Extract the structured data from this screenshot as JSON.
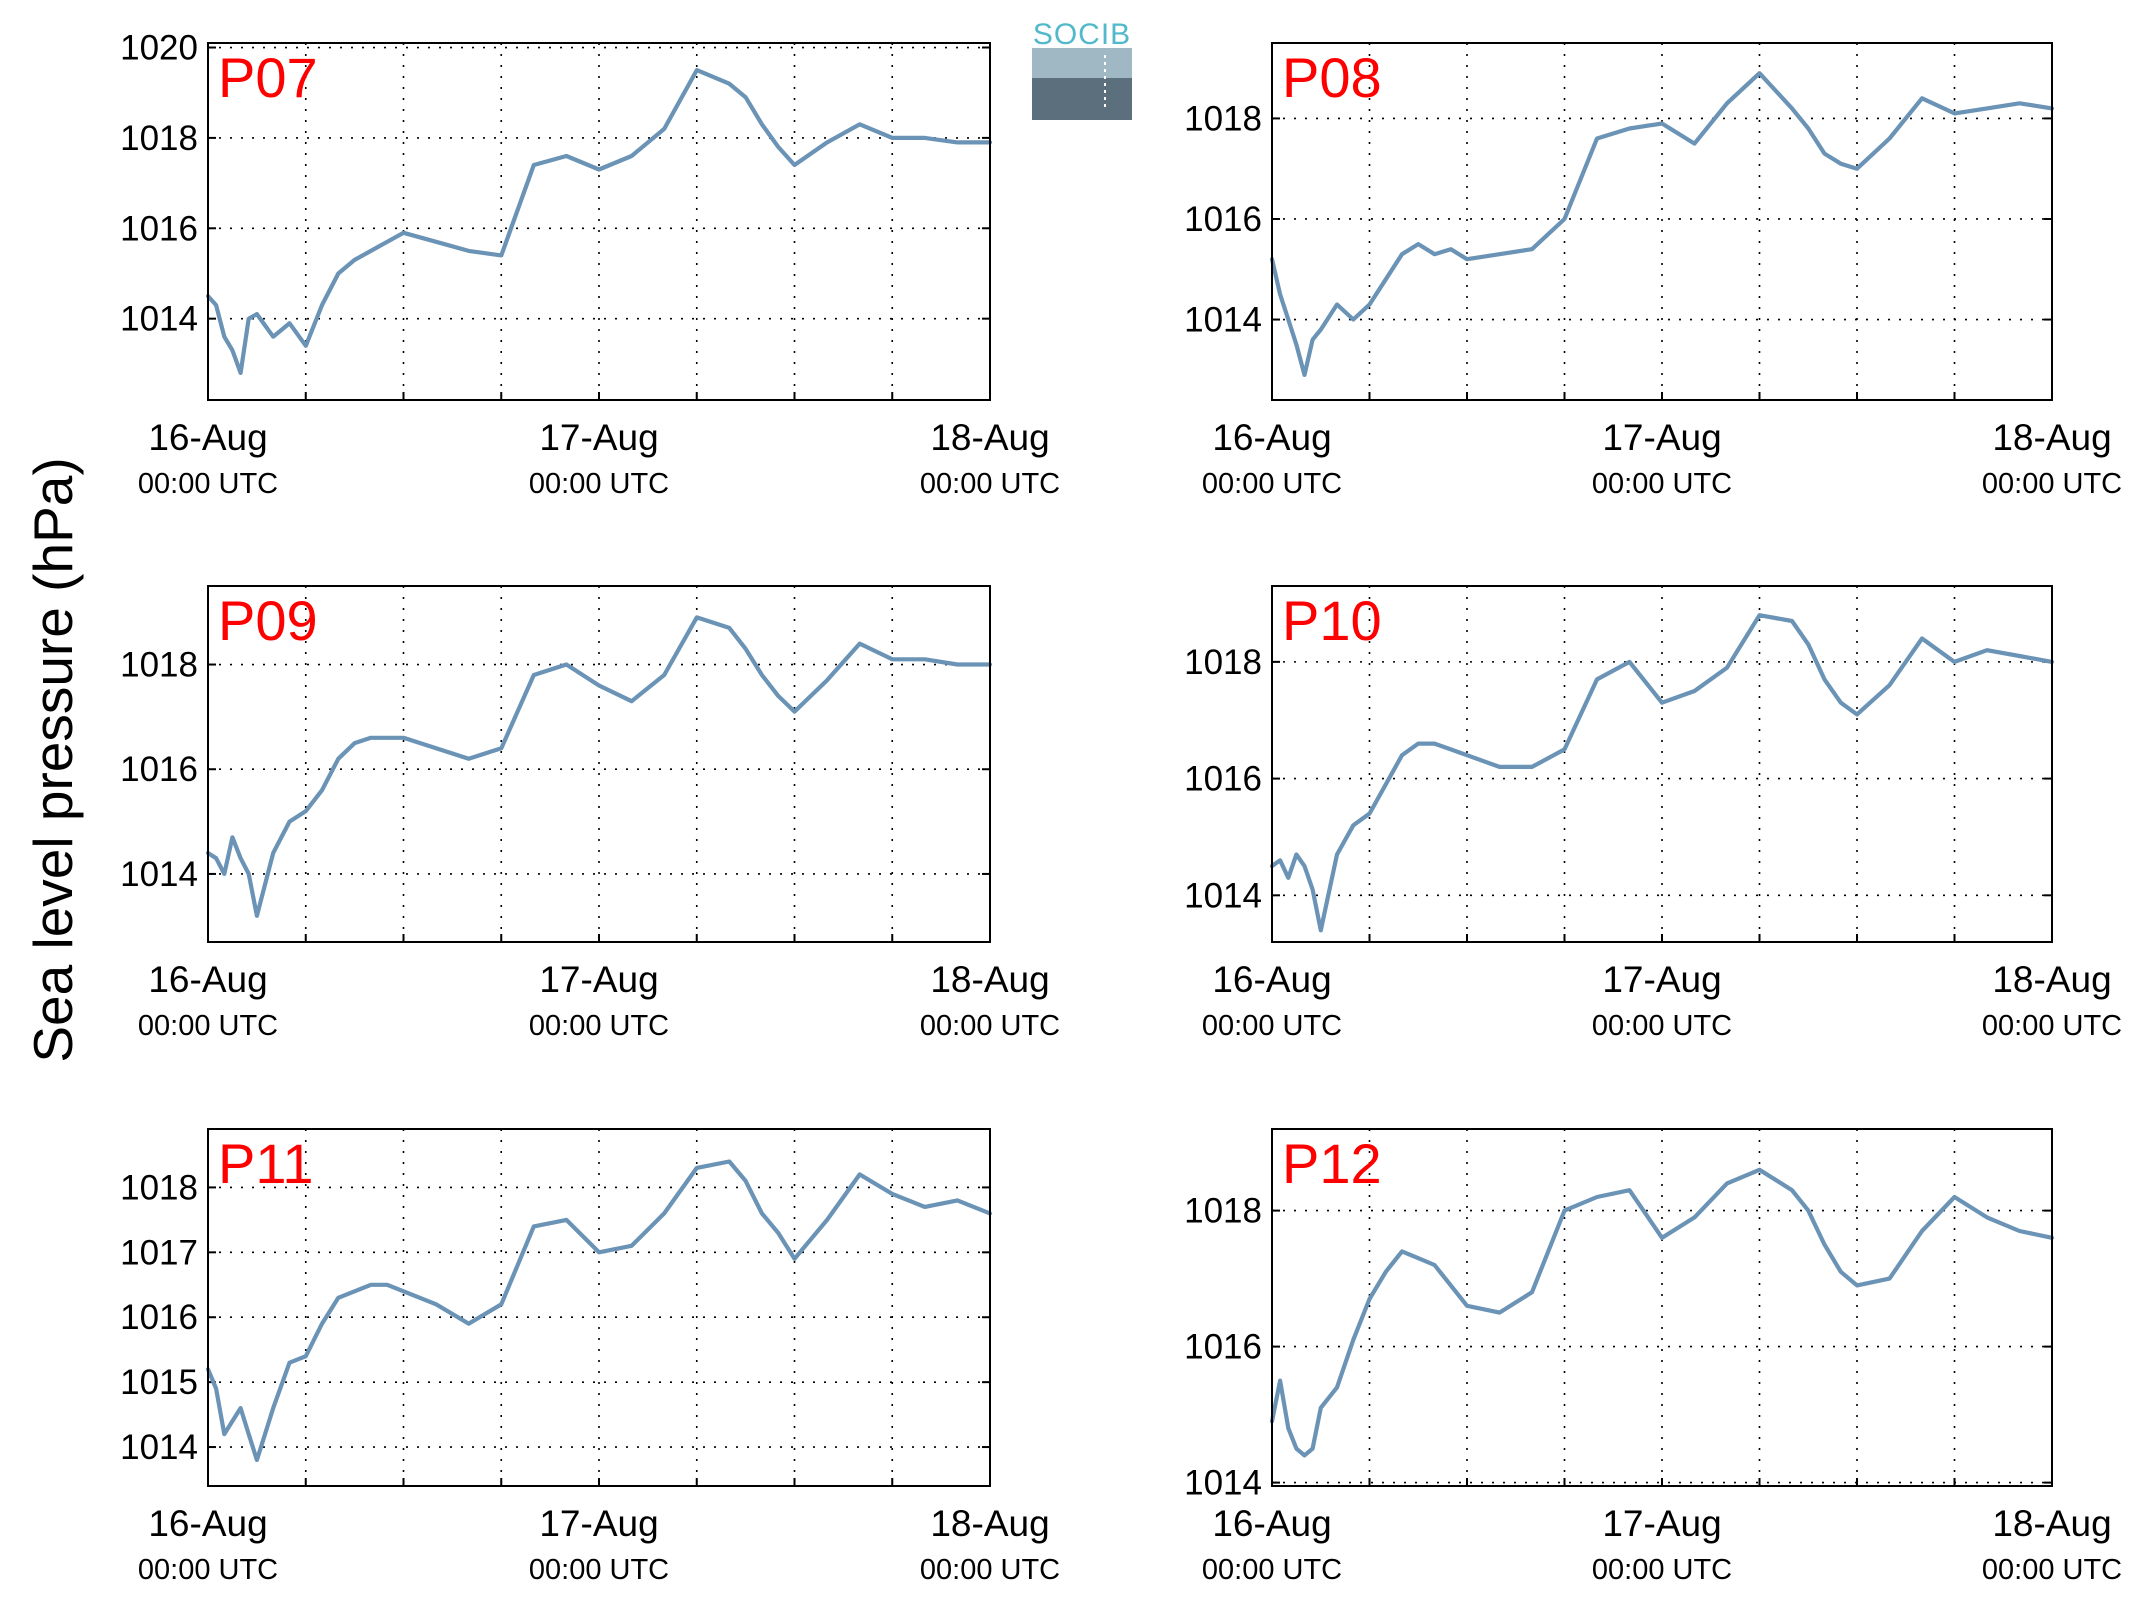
{
  "colors": {
    "series": "#6a93b6",
    "station_label": "#ff0000",
    "logo_text": "#52b8cb"
  },
  "logo": {
    "text": "SOCIB"
  },
  "figure": {
    "ylabel": "Sea level pressure (hPa)"
  },
  "chart_data": [
    {
      "type": "line",
      "title": "P07",
      "x_ticks": [
        {
          "date": "16-Aug",
          "time": "00:00 UTC"
        },
        {
          "date": "17-Aug",
          "time": "00:00 UTC"
        },
        {
          "date": "18-Aug",
          "time": "00:00 UTC"
        }
      ],
      "xlim": [
        "2016-08-16 00:00",
        "2016-08-18 00:00"
      ],
      "ylim": [
        1012.2,
        1020.1
      ],
      "yticks": [
        1014,
        1016,
        1018,
        1020
      ],
      "grid": true,
      "series": [
        {
          "x_hours": [
            0,
            0.5,
            1,
            1.5,
            2,
            2.5,
            3,
            4,
            5,
            6,
            7,
            8,
            9,
            10,
            11,
            12,
            14,
            16,
            18,
            20,
            22,
            24,
            26,
            28,
            30,
            32,
            33,
            34,
            35,
            36,
            38,
            40,
            42,
            44,
            46,
            48
          ],
          "values": [
            1014.5,
            1014.3,
            1013.6,
            1013.3,
            1012.8,
            1014.0,
            1014.1,
            1013.6,
            1013.9,
            1013.4,
            1014.3,
            1015.0,
            1015.3,
            1015.5,
            1015.7,
            1015.9,
            1015.7,
            1015.5,
            1015.4,
            1017.4,
            1017.6,
            1017.3,
            1017.6,
            1018.2,
            1019.5,
            1019.2,
            1018.9,
            1018.3,
            1017.8,
            1017.4,
            1017.9,
            1018.3,
            1018.0,
            1018.0,
            1017.9,
            1017.9
          ]
        }
      ]
    },
    {
      "type": "line",
      "title": "P08",
      "x_ticks": [
        {
          "date": "16-Aug",
          "time": "00:00 UTC"
        },
        {
          "date": "17-Aug",
          "time": "00:00 UTC"
        },
        {
          "date": "18-Aug",
          "time": "00:00 UTC"
        }
      ],
      "xlim": [
        "2016-08-16 00:00",
        "2016-08-18 00:00"
      ],
      "ylim": [
        1012.4,
        1019.5
      ],
      "yticks": [
        1014,
        1016,
        1018
      ],
      "grid": true,
      "series": [
        {
          "x_hours": [
            0,
            0.5,
            1,
            1.5,
            2,
            2.5,
            3,
            4,
            5,
            6,
            7,
            8,
            9,
            10,
            11,
            12,
            14,
            16,
            18,
            20,
            22,
            24,
            26,
            28,
            30,
            32,
            33,
            34,
            35,
            36,
            38,
            40,
            42,
            44,
            46,
            48
          ],
          "values": [
            1015.2,
            1014.5,
            1014.0,
            1013.5,
            1012.9,
            1013.6,
            1013.8,
            1014.3,
            1014.0,
            1014.3,
            1014.8,
            1015.3,
            1015.5,
            1015.3,
            1015.4,
            1015.2,
            1015.3,
            1015.4,
            1016.0,
            1017.6,
            1017.8,
            1017.9,
            1017.5,
            1018.3,
            1018.9,
            1018.2,
            1017.8,
            1017.3,
            1017.1,
            1017.0,
            1017.6,
            1018.4,
            1018.1,
            1018.2,
            1018.3,
            1018.2
          ]
        }
      ]
    },
    {
      "type": "line",
      "title": "P09",
      "x_ticks": [
        {
          "date": "16-Aug",
          "time": "00:00 UTC"
        },
        {
          "date": "17-Aug",
          "time": "00:00 UTC"
        },
        {
          "date": "18-Aug",
          "time": "00:00 UTC"
        }
      ],
      "xlim": [
        "2016-08-16 00:00",
        "2016-08-18 00:00"
      ],
      "ylim": [
        1012.7,
        1019.5
      ],
      "yticks": [
        1014,
        1016,
        1018
      ],
      "grid": true,
      "series": [
        {
          "x_hours": [
            0,
            0.5,
            1,
            1.5,
            2,
            2.5,
            3,
            4,
            5,
            6,
            7,
            8,
            9,
            10,
            11,
            12,
            14,
            16,
            18,
            20,
            22,
            24,
            26,
            28,
            30,
            32,
            33,
            34,
            35,
            36,
            38,
            40,
            42,
            44,
            46,
            48
          ],
          "values": [
            1014.4,
            1014.3,
            1014.0,
            1014.7,
            1014.3,
            1014.0,
            1013.2,
            1014.4,
            1015.0,
            1015.2,
            1015.6,
            1016.2,
            1016.5,
            1016.6,
            1016.6,
            1016.6,
            1016.4,
            1016.2,
            1016.4,
            1017.8,
            1018.0,
            1017.6,
            1017.3,
            1017.8,
            1018.9,
            1018.7,
            1018.3,
            1017.8,
            1017.4,
            1017.1,
            1017.7,
            1018.4,
            1018.1,
            1018.1,
            1018.0,
            1018.0
          ]
        }
      ]
    },
    {
      "type": "line",
      "title": "P10",
      "x_ticks": [
        {
          "date": "16-Aug",
          "time": "00:00 UTC"
        },
        {
          "date": "17-Aug",
          "time": "00:00 UTC"
        },
        {
          "date": "18-Aug",
          "time": "00:00 UTC"
        }
      ],
      "xlim": [
        "2016-08-16 00:00",
        "2016-08-18 00:00"
      ],
      "ylim": [
        1013.2,
        1019.3
      ],
      "yticks": [
        1014,
        1016,
        1018
      ],
      "grid": true,
      "series": [
        {
          "x_hours": [
            0,
            0.5,
            1,
            1.5,
            2,
            2.5,
            3,
            4,
            5,
            6,
            7,
            8,
            9,
            10,
            11,
            12,
            14,
            16,
            18,
            20,
            22,
            24,
            26,
            28,
            30,
            32,
            33,
            34,
            35,
            36,
            38,
            40,
            42,
            44,
            46,
            48
          ],
          "values": [
            1014.5,
            1014.6,
            1014.3,
            1014.7,
            1014.5,
            1014.1,
            1013.4,
            1014.7,
            1015.2,
            1015.4,
            1015.9,
            1016.4,
            1016.6,
            1016.6,
            1016.5,
            1016.4,
            1016.2,
            1016.2,
            1016.5,
            1017.7,
            1018.0,
            1017.3,
            1017.5,
            1017.9,
            1018.8,
            1018.7,
            1018.3,
            1017.7,
            1017.3,
            1017.1,
            1017.6,
            1018.4,
            1018.0,
            1018.2,
            1018.1,
            1018.0
          ]
        }
      ]
    },
    {
      "type": "line",
      "title": "P11",
      "x_ticks": [
        {
          "date": "16-Aug",
          "time": "00:00 UTC"
        },
        {
          "date": "17-Aug",
          "time": "00:00 UTC"
        },
        {
          "date": "18-Aug",
          "time": "00:00 UTC"
        }
      ],
      "xlim": [
        "2016-08-16 00:00",
        "2016-08-18 00:00"
      ],
      "ylim": [
        1013.4,
        1018.9
      ],
      "yticks": [
        1014,
        1015,
        1016,
        1017,
        1018
      ],
      "grid": true,
      "series": [
        {
          "x_hours": [
            0,
            0.5,
            1,
            1.5,
            2,
            2.5,
            3,
            4,
            5,
            6,
            7,
            8,
            9,
            10,
            11,
            12,
            14,
            16,
            18,
            20,
            22,
            24,
            26,
            28,
            30,
            32,
            33,
            34,
            35,
            36,
            38,
            40,
            42,
            44,
            46,
            48
          ],
          "values": [
            1015.2,
            1014.9,
            1014.2,
            1014.4,
            1014.6,
            1014.2,
            1013.8,
            1014.6,
            1015.3,
            1015.4,
            1015.9,
            1016.3,
            1016.4,
            1016.5,
            1016.5,
            1016.4,
            1016.2,
            1015.9,
            1016.2,
            1017.4,
            1017.5,
            1017.0,
            1017.1,
            1017.6,
            1018.3,
            1018.4,
            1018.1,
            1017.6,
            1017.3,
            1016.9,
            1017.5,
            1018.2,
            1017.9,
            1017.7,
            1017.8,
            1017.6
          ]
        }
      ]
    },
    {
      "type": "line",
      "title": "P12",
      "x_ticks": [
        {
          "date": "16-Aug",
          "time": "00:00 UTC"
        },
        {
          "date": "17-Aug",
          "time": "00:00 UTC"
        },
        {
          "date": "18-Aug",
          "time": "00:00 UTC"
        }
      ],
      "xlim": [
        "2016-08-16 00:00",
        "2016-08-18 00:00"
      ],
      "ylim": [
        1013.95,
        1019.2
      ],
      "yticks": [
        1014,
        1016,
        1018
      ],
      "grid": true,
      "series": [
        {
          "x_hours": [
            0,
            0.5,
            1,
            1.5,
            2,
            2.5,
            3,
            4,
            5,
            6,
            7,
            8,
            9,
            10,
            11,
            12,
            14,
            16,
            18,
            20,
            22,
            24,
            26,
            28,
            30,
            32,
            33,
            34,
            35,
            36,
            38,
            40,
            42,
            44,
            46,
            48
          ],
          "values": [
            1014.9,
            1015.5,
            1014.8,
            1014.5,
            1014.4,
            1014.5,
            1015.1,
            1015.4,
            1016.1,
            1016.7,
            1017.1,
            1017.4,
            1017.3,
            1017.2,
            1016.9,
            1016.6,
            1016.5,
            1016.8,
            1018.0,
            1018.2,
            1018.3,
            1017.6,
            1017.9,
            1018.4,
            1018.6,
            1018.3,
            1018.0,
            1017.5,
            1017.1,
            1016.9,
            1017.0,
            1017.7,
            1018.2,
            1017.9,
            1017.7,
            1017.6
          ]
        }
      ]
    }
  ]
}
